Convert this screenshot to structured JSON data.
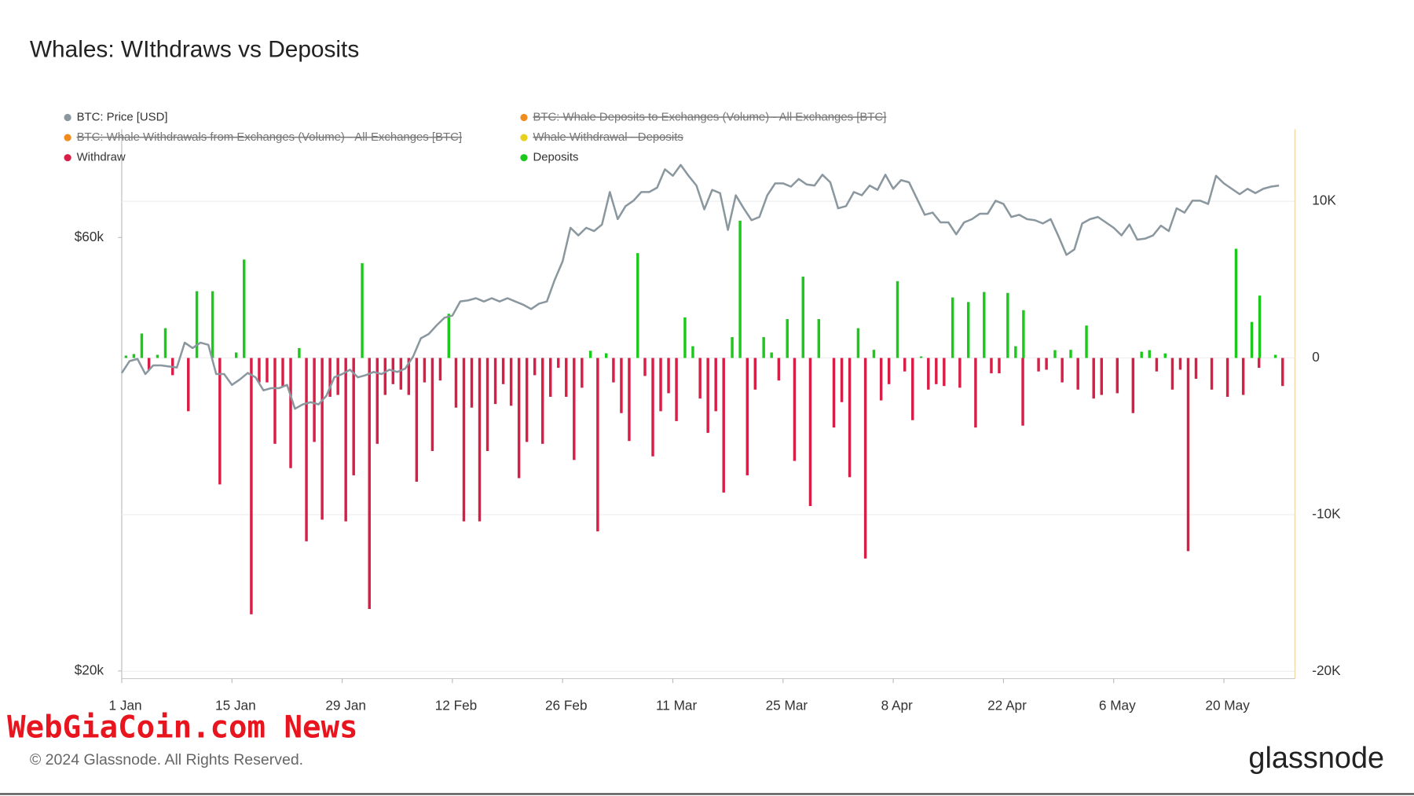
{
  "chart_data": {
    "type": "bar-line",
    "title": "Whales: WIthdraws vs Deposits",
    "watermark": "WebGiaCoin.com News",
    "copyright": "© 2024 Glassnode. All Rights Reserved.",
    "logo": "glassnode",
    "categories": [
      "1 Jan",
      null,
      null,
      null,
      null,
      null,
      null,
      null,
      null,
      null,
      null,
      null,
      null,
      null,
      "15 Jan",
      null,
      null,
      null,
      null,
      null,
      null,
      null,
      null,
      null,
      null,
      null,
      null,
      null,
      "29 Jan",
      null,
      null,
      null,
      null,
      null,
      null,
      null,
      null,
      null,
      null,
      null,
      null,
      null,
      "12 Feb",
      null,
      null,
      null,
      null,
      null,
      null,
      null,
      null,
      null,
      null,
      null,
      null,
      null,
      "26 Feb",
      null,
      null,
      null,
      null,
      null,
      null,
      null,
      null,
      null,
      null,
      null,
      null,
      null,
      "11 Mar",
      null,
      null,
      null,
      null,
      null,
      null,
      null,
      null,
      null,
      null,
      null,
      null,
      null,
      "25 Mar",
      null,
      null,
      null,
      null,
      null,
      null,
      null,
      null,
      null,
      null,
      null,
      null,
      null,
      "8 Apr",
      null,
      null,
      null,
      null,
      null,
      null,
      null,
      null,
      null,
      null,
      null,
      null,
      null,
      "22 Apr",
      null,
      null,
      null,
      null,
      null,
      null,
      null,
      null,
      null,
      null,
      null,
      null,
      null,
      "6 May",
      null,
      null,
      null,
      null,
      null,
      null,
      null,
      null,
      null,
      null,
      null,
      null,
      null,
      "20 May",
      null,
      null,
      null,
      null,
      null,
      null,
      null
    ],
    "ylim": [
      19300,
      70000
    ],
    "yticks": [
      {
        "value": 20000,
        "label": "$20k"
      },
      {
        "value": 60000,
        "label": "$60k"
      }
    ],
    "y2lim": [
      -20460,
      14600
    ],
    "y2ticks": [
      {
        "value": 10000,
        "label": "10K"
      },
      0,
      {
        "value": -10000,
        "label": "-10K"
      },
      {
        "value": -20000,
        "label": "-20K"
      }
    ],
    "grid": true,
    "series": [
      {
        "name": "BTC: Price [USD]",
        "color": "#8a979f",
        "kind": "line",
        "axis": "y",
        "values": [
          47500,
          48600,
          48800,
          47400,
          48200,
          48200,
          48100,
          48000,
          50300,
          49800,
          50300,
          50100,
          47400,
          47400,
          46400,
          46900,
          47500,
          47100,
          45900,
          46100,
          46100,
          46400,
          44200,
          44600,
          44800,
          44600,
          45400,
          47100,
          47400,
          47800,
          47100,
          47300,
          47600,
          47400,
          47800,
          47600,
          47900,
          49000,
          50700,
          51100,
          51900,
          52600,
          52800,
          54100,
          54200,
          54400,
          54100,
          54400,
          54100,
          54400,
          54100,
          53800,
          53400,
          53900,
          54100,
          56100,
          57800,
          60900,
          60200,
          60900,
          60600,
          61200,
          64200,
          61700,
          62900,
          63400,
          64200,
          64200,
          64600,
          66300,
          65700,
          66700,
          65700,
          64800,
          62600,
          64400,
          64100,
          60700,
          63900,
          62700,
          61600,
          61900,
          63900,
          65000,
          65000,
          64700,
          65400,
          64900,
          64800,
          65800,
          65100,
          62700,
          62900,
          64200,
          63900,
          64800,
          64400,
          65800,
          64500,
          65300,
          65100,
          63600,
          62100,
          62300,
          61400,
          61400,
          60300,
          61400,
          61700,
          62200,
          62200,
          63400,
          63100,
          61900,
          62100,
          61700,
          61600,
          61300,
          61700,
          60100,
          58400,
          58900,
          61300,
          61700,
          61900,
          61400,
          60900,
          60200,
          61200,
          59800,
          59900,
          60200,
          61100,
          60600,
          62700,
          62300,
          63400,
          63400,
          63100,
          65700,
          65000,
          64500,
          64000,
          64500,
          64100,
          64500,
          64700,
          64800
        ]
      },
      {
        "name": "BTC: Whale Deposits to Exchanges (Volume) - All Exchanges [BTC]",
        "color": "#f08c1e",
        "hidden": true
      },
      {
        "name": "BTC: Whale Withdrawals from Exchanges (Volume) - All Exchanges [BTC]",
        "color": "#f08c1e",
        "hidden": true
      },
      {
        "name": "Whale Withdrawal - Deposits",
        "color": "#e6d21e",
        "hidden": true
      },
      {
        "name": "Withdraw",
        "color": "#d81e46",
        "kind": "bar",
        "axis": "y2",
        "values": [
          0,
          0,
          0,
          -750,
          0,
          0,
          -1100,
          0,
          -3400,
          0,
          0,
          0,
          -8070,
          0,
          0,
          0,
          -16360,
          -1560,
          -1560,
          -5480,
          -1790,
          -7030,
          0,
          -11700,
          -5360,
          -10320,
          -2480,
          -2360,
          -10430,
          -7490,
          0,
          -16020,
          -5480,
          -2360,
          -1670,
          -2020,
          -2360,
          -7900,
          -1560,
          -5940,
          -1440,
          0,
          -3170,
          -10430,
          -3170,
          -10430,
          -5940,
          -2940,
          -1670,
          -3050,
          -7670,
          -5360,
          -1100,
          -5480,
          -2480,
          -630,
          -2480,
          -6510,
          -1900,
          0,
          -11070,
          0,
          -1560,
          -3520,
          -5300,
          0,
          -1150,
          -6280,
          -3400,
          -2250,
          -4030,
          0,
          0,
          -2590,
          -4780,
          -3400,
          -8590,
          0,
          0,
          -7490,
          -2020,
          0,
          0,
          -1440,
          0,
          -6570,
          0,
          -9450,
          0,
          0,
          -4440,
          -2820,
          -7610,
          0,
          -12800,
          0,
          -2710,
          -1670,
          0,
          -860,
          -3970,
          0,
          -2020,
          -1670,
          -1790,
          0,
          -1900,
          0,
          -4440,
          0,
          -980,
          -980,
          0,
          0,
          -4320,
          0,
          -860,
          -750,
          0,
          -1560,
          0,
          -2020,
          0,
          -2590,
          -2360,
          0,
          -2250,
          0,
          -3520,
          0,
          0,
          -860,
          0,
          -2020,
          -750,
          -12330,
          -1330,
          0,
          -2020,
          0,
          -2480,
          0,
          -2360,
          0,
          -630,
          0,
          0,
          -1790
        ]
      },
      {
        "name": "Deposits",
        "color": "#1bc91b",
        "kind": "bar",
        "axis": "y2",
        "values": [
          0,
          150,
          250,
          1560,
          0,
          200,
          1900,
          0,
          0,
          0,
          4260,
          0,
          4260,
          0,
          0,
          350,
          6280,
          0,
          0,
          0,
          0,
          0,
          0,
          630,
          0,
          0,
          0,
          0,
          0,
          0,
          0,
          6050,
          0,
          0,
          0,
          0,
          0,
          0,
          0,
          0,
          0,
          0,
          2820,
          0,
          0,
          0,
          0,
          0,
          0,
          0,
          0,
          0,
          0,
          0,
          0,
          0,
          0,
          0,
          0,
          0,
          460,
          0,
          300,
          0,
          0,
          0,
          6690,
          0,
          0,
          0,
          0,
          0,
          2590,
          750,
          0,
          0,
          0,
          0,
          1330,
          8760,
          0,
          0,
          1330,
          350,
          0,
          2480,
          0,
          5190,
          0,
          2480,
          0,
          0,
          0,
          0,
          1900,
          0,
          520,
          0,
          0,
          4900,
          0,
          0,
          100,
          0,
          0,
          0,
          3860,
          0,
          3570,
          0,
          4210,
          0,
          0,
          4150,
          750,
          3050,
          0,
          0,
          0,
          500,
          0,
          520,
          0,
          2070,
          0,
          0,
          0,
          0,
          0,
          0,
          400,
          500,
          0,
          290,
          0,
          0,
          0,
          0,
          0,
          0,
          0,
          0,
          6970,
          0,
          2300,
          3980,
          0,
          200
        ]
      }
    ]
  }
}
